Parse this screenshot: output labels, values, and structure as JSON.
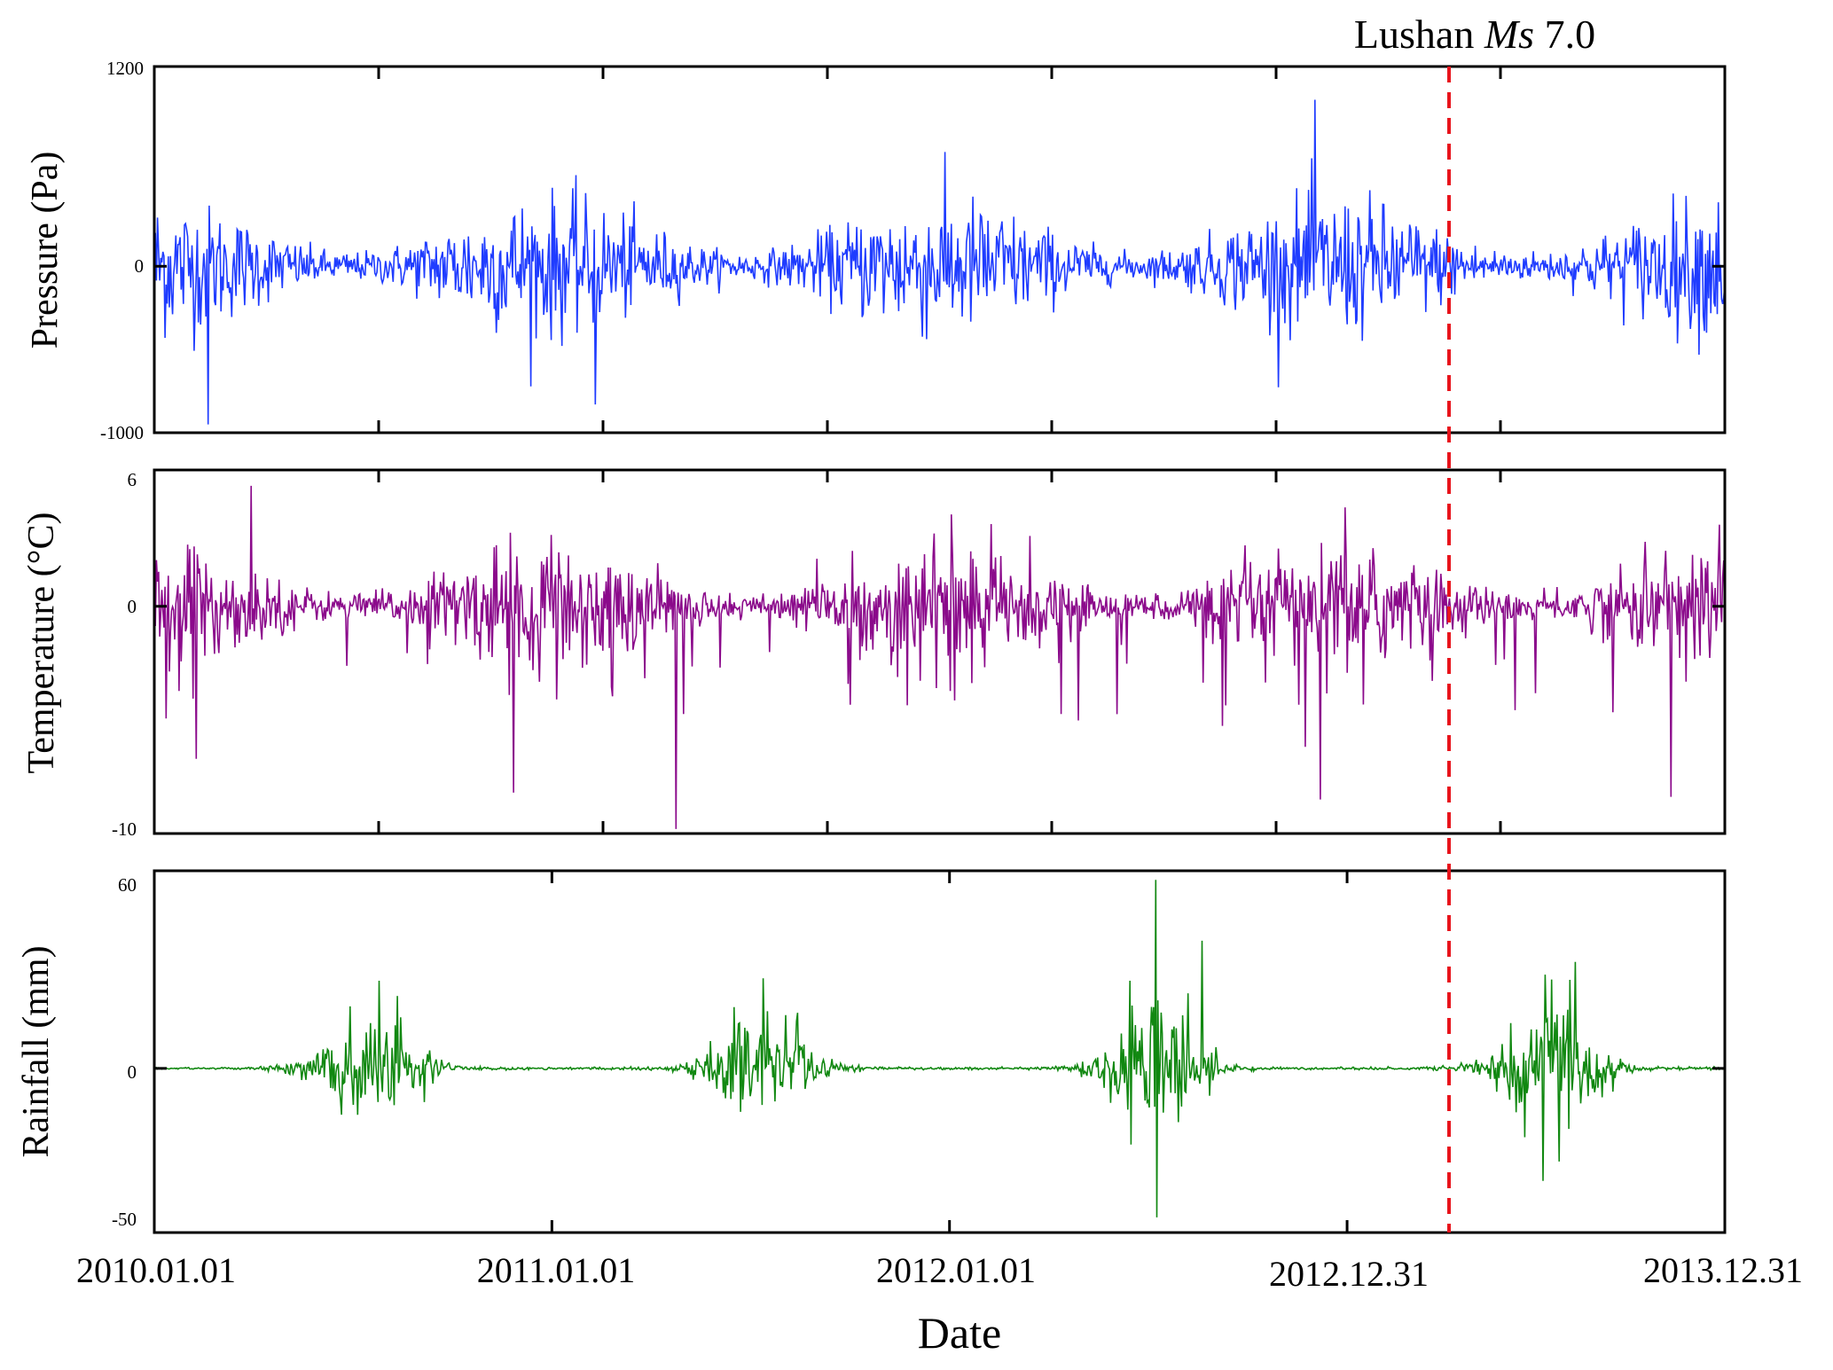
{
  "chart_data": [
    {
      "type": "line",
      "ylabel": "Pressure (Pa)",
      "ylim": [
        -1000,
        1200
      ],
      "yticks": [
        "1200",
        "0",
        "-1000"
      ],
      "color": "#1f3cff",
      "amplitude_note": "daily anomaly, mostly within ±400 Pa",
      "peaks": [
        {
          "date": "2012.12.15",
          "value": 1000
        },
        {
          "date": "2010.02.20",
          "value": -950
        },
        {
          "date": "2011.02.15",
          "value": -830
        }
      ],
      "seasonal_amplitude": 300
    },
    {
      "type": "line",
      "ylabel": "Temperature (°C)",
      "ylim": [
        -10,
        6
      ],
      "yticks": [
        "6",
        "0",
        "-10"
      ],
      "color": "#8b0a8b",
      "peaks": [
        {
          "date": "2010.04.01",
          "value": 5.3
        },
        {
          "date": "2011.05.01",
          "value": -9.8
        },
        {
          "date": "2010.12.01",
          "value": -8.2
        },
        {
          "date": "2012.12.20",
          "value": -8.5
        }
      ],
      "seasonal_amplitude": 2
    },
    {
      "type": "line",
      "ylabel": "Rainfall (mm)",
      "ylim": [
        -54,
        65
      ],
      "yticks": [
        "60",
        "0",
        "-50"
      ],
      "color": "#118811",
      "peaks": [
        {
          "date": "2012.07.20",
          "value": 62
        },
        {
          "date": "2012.07.21",
          "value": -49
        },
        {
          "date": "2012.09.01",
          "value": 42
        },
        {
          "date": "2013.07.15",
          "value": -37
        }
      ],
      "seasonal_amplitude": 12
    }
  ],
  "xlabel": "Date",
  "xtick_labels": [
    "2010.01.01",
    "2011.01.01",
    "2012.01.01",
    "2012.12.31",
    "2013.12.31"
  ],
  "x_range": [
    "2010.01.01",
    "2013.12.31"
  ],
  "event": {
    "label_prefix": "Lushan ",
    "label_italic": "Ms",
    "label_suffix": " 7.0",
    "date": "2013.04.20",
    "color": "#e8141c"
  }
}
